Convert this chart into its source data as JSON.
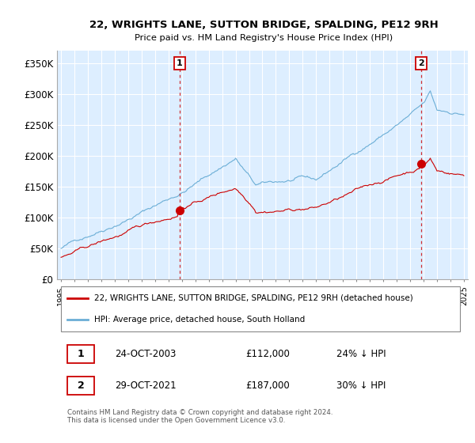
{
  "title": "22, WRIGHTS LANE, SUTTON BRIDGE, SPALDING, PE12 9RH",
  "subtitle": "Price paid vs. HM Land Registry's House Price Index (HPI)",
  "ylim": [
    0,
    370000
  ],
  "yticks": [
    0,
    50000,
    100000,
    150000,
    200000,
    250000,
    300000,
    350000
  ],
  "ytick_labels": [
    "£0",
    "£50K",
    "£100K",
    "£150K",
    "£200K",
    "£250K",
    "£300K",
    "£350K"
  ],
  "background_color": "#ffffff",
  "plot_bg_color": "#ddeeff",
  "grid_color": "#ffffff",
  "hpi_color": "#6baed6",
  "price_color": "#cc0000",
  "marker_box_color": "#cc0000",
  "legend_label_price": "22, WRIGHTS LANE, SUTTON BRIDGE, SPALDING, PE12 9RH (detached house)",
  "legend_label_hpi": "HPI: Average price, detached house, South Holland",
  "table_row1": [
    "1",
    "24-OCT-2003",
    "£112,000",
    "24% ↓ HPI"
  ],
  "table_row2": [
    "2",
    "29-OCT-2021",
    "£187,000",
    "30% ↓ HPI"
  ],
  "footnote": "Contains HM Land Registry data © Crown copyright and database right 2024.\nThis data is licensed under the Open Government Licence v3.0.",
  "year_start": 1995,
  "year_end": 2025,
  "sale1_year": 2003.83,
  "sale2_year": 2021.83,
  "sale1_price": 112000,
  "sale2_price": 187000
}
